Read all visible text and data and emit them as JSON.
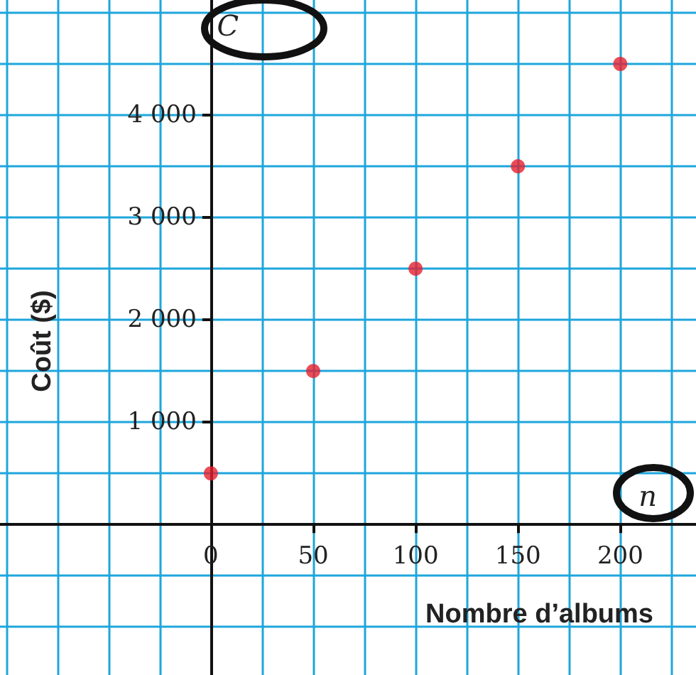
{
  "chart_data": {
    "type": "scatter",
    "xlabel": "Nombre d’albums",
    "ylabel": "Coût ($)",
    "annotations": [
      "C",
      "n"
    ],
    "x": [
      0,
      50,
      100,
      150,
      200
    ],
    "series": [
      {
        "color": "#e5202e",
        "values": [
          500,
          1500,
          2500,
          3500,
          4500
        ]
      }
    ],
    "xlim": [
      -103,
      237
    ],
    "ylim": [
      -1470,
      5125
    ],
    "xticks": [
      0,
      50,
      100,
      150,
      200
    ],
    "yticks": [
      {
        "value": 1000,
        "label": "1 000"
      },
      {
        "value": 2000,
        "label": "2 000"
      },
      {
        "value": 3000,
        "label": "3 000"
      },
      {
        "value": 4000,
        "label": "4 000"
      }
    ],
    "grid": true,
    "marker": "circle"
  }
}
